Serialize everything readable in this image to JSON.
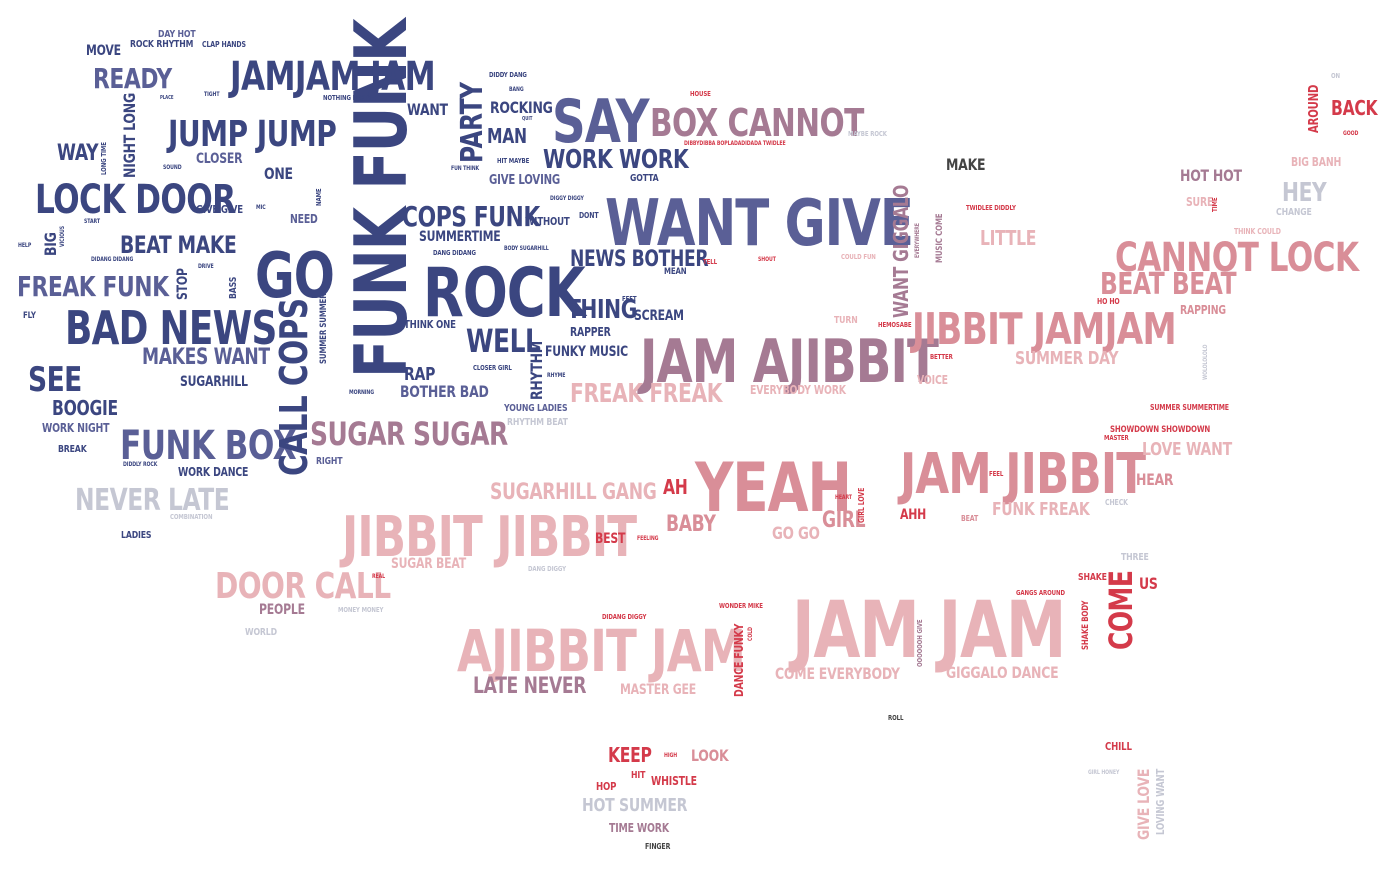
{
  "palette": {
    "navy": "#3b4680",
    "slate": "#5a5f96",
    "mauve": "#a57a93",
    "rose": "#d98e98",
    "pink": "#e8b3b8",
    "red": "#d43a4a",
    "grey": "#c5c7d3",
    "dark": "#444444"
  },
  "words": [
    {
      "text": "FUNK FUNK",
      "c": "navy"
    },
    {
      "text": "WANT GIVE",
      "c": "slate"
    },
    {
      "text": "JAM JAM",
      "c": "pink"
    },
    {
      "text": "ROCK",
      "c": "navy"
    },
    {
      "text": "YEAH",
      "c": "rose"
    },
    {
      "text": "JAM AJIBBIT",
      "c": "mauve"
    },
    {
      "text": "JAM JIBBIT",
      "c": "rose"
    },
    {
      "text": "JIBBIT JIBBIT",
      "c": "pink"
    },
    {
      "text": "AJIBBIT JAM",
      "c": "pink"
    },
    {
      "text": "GO",
      "c": "navy"
    },
    {
      "text": "SAY",
      "c": "slate"
    },
    {
      "text": "BAD NEWS",
      "c": "navy"
    },
    {
      "text": "LOCK DOOR",
      "c": "navy"
    },
    {
      "text": "JAMJAM JAM",
      "c": "navy"
    },
    {
      "text": "JIBBIT JAMJAM",
      "c": "rose"
    },
    {
      "text": "CANNOT LOCK",
      "c": "rose"
    },
    {
      "text": "BOX CANNOT",
      "c": "mauve"
    },
    {
      "text": "JUMP JUMP",
      "c": "navy"
    },
    {
      "text": "FUNK BOX",
      "c": "slate"
    },
    {
      "text": "CALL COPS",
      "c": "navy"
    },
    {
      "text": "DOOR CALL",
      "c": "pink"
    },
    {
      "text": "SUGAR SUGAR",
      "c": "mauve"
    },
    {
      "text": "COPS FUNK",
      "c": "navy"
    },
    {
      "text": "BEAT BEAT",
      "c": "rose"
    },
    {
      "text": "FREAK FUNK",
      "c": "slate"
    },
    {
      "text": "NEVER LATE",
      "c": "grey"
    },
    {
      "text": "WELL",
      "c": "navy"
    },
    {
      "text": "SEE",
      "c": "navy"
    },
    {
      "text": "PARTY",
      "c": "navy"
    },
    {
      "text": "READY",
      "c": "slate"
    },
    {
      "text": "COME",
      "c": "red"
    },
    {
      "text": "WORK WORK",
      "c": "navy"
    },
    {
      "text": "NEWS BOTHER",
      "c": "navy"
    },
    {
      "text": "MAKES WANT",
      "c": "slate"
    },
    {
      "text": "BEAT MAKE",
      "c": "navy"
    },
    {
      "text": "THING",
      "c": "navy"
    },
    {
      "text": "WANT GIGGALO",
      "c": "mauve"
    },
    {
      "text": "LATE NEVER",
      "c": "mauve"
    },
    {
      "text": "FREAK FREAK",
      "c": "pink"
    },
    {
      "text": "SUGARHILL GANG",
      "c": "pink"
    },
    {
      "text": "LITTLE",
      "c": "pink"
    },
    {
      "text": "SUMMER DAY",
      "c": "pink"
    },
    {
      "text": "HOT HOT",
      "c": "mauve"
    },
    {
      "text": "HEY",
      "c": "grey"
    },
    {
      "text": "MAKE",
      "c": "dark"
    },
    {
      "text": "BACK",
      "c": "red"
    },
    {
      "text": "AROUND",
      "c": "red"
    },
    {
      "text": "BIG BANH",
      "c": "pink"
    },
    {
      "text": "SURE",
      "c": "pink"
    },
    {
      "text": "CHANGE",
      "c": "grey"
    },
    {
      "text": "THINK COULD",
      "c": "pink"
    },
    {
      "text": "RAPPING",
      "c": "rose"
    },
    {
      "text": "HO HO",
      "c": "red"
    },
    {
      "text": "NIGHT LONG",
      "c": "navy"
    },
    {
      "text": "WAY",
      "c": "navy"
    },
    {
      "text": "MOVE",
      "c": "navy"
    },
    {
      "text": "ROCK RHYTHM",
      "c": "navy"
    },
    {
      "text": "DAY HOT",
      "c": "slate"
    },
    {
      "text": "CLAP HANDS",
      "c": "navy"
    },
    {
      "text": "CLOSER",
      "c": "slate"
    },
    {
      "text": "ONE",
      "c": "navy"
    },
    {
      "text": "NEED",
      "c": "slate"
    },
    {
      "text": "GIVE GIVE",
      "c": "navy"
    },
    {
      "text": "BIG",
      "c": "navy"
    },
    {
      "text": "STOP",
      "c": "navy"
    },
    {
      "text": "BASS",
      "c": "navy"
    },
    {
      "text": "BOOGIE",
      "c": "navy"
    },
    {
      "text": "WORK NIGHT",
      "c": "slate"
    },
    {
      "text": "BREAK",
      "c": "navy"
    },
    {
      "text": "WORK DANCE",
      "c": "navy"
    },
    {
      "text": "SUGARHILL",
      "c": "navy"
    },
    {
      "text": "FLY",
      "c": "navy"
    },
    {
      "text": "RIGHT",
      "c": "slate"
    },
    {
      "text": "LADIES",
      "c": "navy"
    },
    {
      "text": "COMBINATION",
      "c": "grey"
    },
    {
      "text": "WANT",
      "c": "navy"
    },
    {
      "text": "MAN",
      "c": "navy"
    },
    {
      "text": "ROCKING",
      "c": "navy"
    },
    {
      "text": "GIVE LOVING",
      "c": "slate"
    },
    {
      "text": "GOTTA",
      "c": "navy"
    },
    {
      "text": "SUMMERTIME",
      "c": "navy"
    },
    {
      "text": "WITHOUT",
      "c": "navy"
    },
    {
      "text": "THINK ONE",
      "c": "navy"
    },
    {
      "text": "RAP",
      "c": "navy"
    },
    {
      "text": "BOTHER BAD",
      "c": "slate"
    },
    {
      "text": "YOUNG LADIES",
      "c": "slate"
    },
    {
      "text": "RHYTHM BEAT",
      "c": "grey"
    },
    {
      "text": "RAPPER",
      "c": "navy"
    },
    {
      "text": "SCREAM",
      "c": "navy"
    },
    {
      "text": "FUNKY MUSIC",
      "c": "navy"
    },
    {
      "text": "RHYTHM",
      "c": "navy"
    },
    {
      "text": "EVERYBODY WORK",
      "c": "pink"
    },
    {
      "text": "VOICE",
      "c": "pink"
    },
    {
      "text": "TURN",
      "c": "pink"
    },
    {
      "text": "AH",
      "c": "red"
    },
    {
      "text": "BABY",
      "c": "rose"
    },
    {
      "text": "BEST",
      "c": "red"
    },
    {
      "text": "GO GO",
      "c": "pink"
    },
    {
      "text": "GIRL",
      "c": "rose"
    },
    {
      "text": "AHH",
      "c": "red"
    },
    {
      "text": "FUNK FREAK",
      "c": "pink"
    },
    {
      "text": "LOVE WANT",
      "c": "pink"
    },
    {
      "text": "HEAR",
      "c": "rose"
    },
    {
      "text": "SUGAR BEAT",
      "c": "pink"
    },
    {
      "text": "PEOPLE",
      "c": "mauve"
    },
    {
      "text": "WORLD",
      "c": "grey"
    },
    {
      "text": "DANCE FUNKY",
      "c": "red"
    },
    {
      "text": "COME EVERYBODY",
      "c": "pink"
    },
    {
      "text": "GIGGALO DANCE",
      "c": "pink"
    },
    {
      "text": "MASTER GEE",
      "c": "pink"
    },
    {
      "text": "KEEP",
      "c": "red"
    },
    {
      "text": "LOOK",
      "c": "rose"
    },
    {
      "text": "HIT",
      "c": "red"
    },
    {
      "text": "WHISTLE",
      "c": "red"
    },
    {
      "text": "HOP",
      "c": "red"
    },
    {
      "text": "HOT SUMMER",
      "c": "grey"
    },
    {
      "text": "TIME WORK",
      "c": "mauve"
    },
    {
      "text": "FINGER",
      "c": "dark"
    },
    {
      "text": "CHILL",
      "c": "red"
    },
    {
      "text": "GIVE LOVE",
      "c": "pink"
    },
    {
      "text": "LOVING WANT",
      "c": "grey"
    },
    {
      "text": "US",
      "c": "red"
    },
    {
      "text": "SHAKE",
      "c": "red"
    },
    {
      "text": "SHAKE BODY",
      "c": "red"
    },
    {
      "text": "THREE",
      "c": "grey"
    },
    {
      "text": "ROLL",
      "c": "dark"
    },
    {
      "text": "SHOWDOWN SHOWDOWN",
      "c": "red"
    },
    {
      "text": "SUMMER SUMMERTIME",
      "c": "red"
    },
    {
      "text": "MASTER",
      "c": "red"
    },
    {
      "text": "BETTER",
      "c": "red"
    },
    {
      "text": "HEMOSABE",
      "c": "red"
    },
    {
      "text": "MUSIC COME",
      "c": "mauve"
    },
    {
      "text": "EVERYWHERE",
      "c": "mauve"
    },
    {
      "text": "TWIDLEE DIDDLY",
      "c": "red"
    },
    {
      "text": "GANGS AROUND",
      "c": "red"
    },
    {
      "text": "WONDER MIKE",
      "c": "red"
    },
    {
      "text": "DIDANG DIGGY",
      "c": "red"
    },
    {
      "text": "HOUSE",
      "c": "red"
    },
    {
      "text": "DIBBYDIBBA BOPLADADIDADA TWIDLEE",
      "c": "red"
    },
    {
      "text": "MAYBE ROCK",
      "c": "grey"
    },
    {
      "text": "DIDDY DANG",
      "c": "navy"
    },
    {
      "text": "BANG",
      "c": "navy"
    },
    {
      "text": "QUIT",
      "c": "navy"
    },
    {
      "text": "FUN THINK",
      "c": "navy"
    },
    {
      "text": "HIT MAYBE",
      "c": "navy"
    },
    {
      "text": "DIGGY DIGGY",
      "c": "navy"
    },
    {
      "text": "DONT",
      "c": "navy"
    },
    {
      "text": "BODY SUGARHILL",
      "c": "navy"
    },
    {
      "text": "DANG DIDANG",
      "c": "navy"
    },
    {
      "text": "CLOSER GIRL",
      "c": "navy"
    },
    {
      "text": "RHYME",
      "c": "navy"
    },
    {
      "text": "MEAN",
      "c": "navy"
    },
    {
      "text": "TELL",
      "c": "red"
    },
    {
      "text": "SHOUT",
      "c": "red"
    },
    {
      "text": "COULD FUN",
      "c": "pink"
    },
    {
      "text": "FEET",
      "c": "navy"
    },
    {
      "text": "FEEL",
      "c": "red"
    },
    {
      "text": "HEART",
      "c": "red"
    },
    {
      "text": "GIRL LOVE",
      "c": "red"
    },
    {
      "text": "BEAT",
      "c": "rose"
    },
    {
      "text": "CHECK",
      "c": "grey"
    },
    {
      "text": "FEELING",
      "c": "red"
    },
    {
      "text": "REAL",
      "c": "red"
    },
    {
      "text": "MONEY MONEY",
      "c": "grey"
    },
    {
      "text": "DANG DIGGY",
      "c": "grey"
    },
    {
      "text": "OOOOOOH GIVE",
      "c": "mauve"
    },
    {
      "text": "COLD",
      "c": "red"
    },
    {
      "text": "HIGH",
      "c": "red"
    },
    {
      "text": "SOUND",
      "c": "navy"
    },
    {
      "text": "PLACE",
      "c": "navy"
    },
    {
      "text": "TIGHT",
      "c": "navy"
    },
    {
      "text": "NOTHING PARTY",
      "c": "navy"
    },
    {
      "text": "LONG TIME",
      "c": "navy"
    },
    {
      "text": "NAME",
      "c": "navy"
    },
    {
      "text": "MIC",
      "c": "navy"
    },
    {
      "text": "START",
      "c": "navy"
    },
    {
      "text": "VICIOUS",
      "c": "navy"
    },
    {
      "text": "HELP",
      "c": "navy"
    },
    {
      "text": "DIDANG DIDANG",
      "c": "navy"
    },
    {
      "text": "DRIVE",
      "c": "navy"
    },
    {
      "text": "SUMMER SUMMER",
      "c": "navy"
    },
    {
      "text": "MORNING",
      "c": "navy"
    },
    {
      "text": "DIDDLY ROCK",
      "c": "navy"
    },
    {
      "text": "ON",
      "c": "grey"
    },
    {
      "text": "GOOD",
      "c": "red"
    },
    {
      "text": "TIME",
      "c": "red"
    },
    {
      "text": "WOLOLOLOLO",
      "c": "grey"
    },
    {
      "text": "GIRL HONEY",
      "c": "grey"
    }
  ]
}
